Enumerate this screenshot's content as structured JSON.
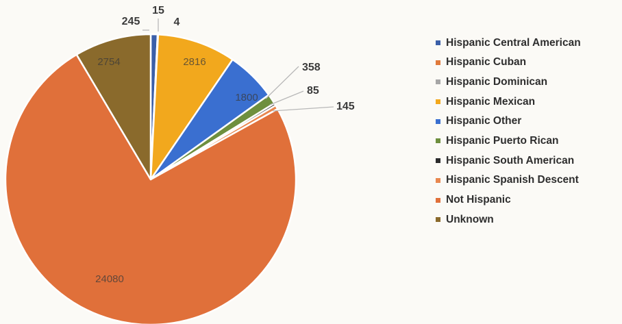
{
  "chart_data": {
    "type": "pie",
    "title": "",
    "slices": [
      {
        "label": "Hispanic Central American",
        "value": 245,
        "color": "#3b5fa8",
        "data_label": "245"
      },
      {
        "label": "Hispanic Cuban",
        "value": 15,
        "color": "#e07a3c",
        "data_label": "15"
      },
      {
        "label": "Hispanic Dominican",
        "value": 4,
        "color": "#a6a6a6",
        "data_label": "4"
      },
      {
        "label": "Hispanic Mexican",
        "value": 2816,
        "color": "#f2a81d",
        "data_label": "2816"
      },
      {
        "label": "Hispanic Other",
        "value": 1800,
        "color": "#3a6fd0",
        "data_label": "1800"
      },
      {
        "label": "Hispanic Puerto Rican",
        "value": 358,
        "color": "#6e8f3e",
        "data_label": "358"
      },
      {
        "label": "Hispanic South American",
        "value": 85,
        "color": "#2b2b2b",
        "data_label": "85"
      },
      {
        "label": "Hispanic Spanish Descent",
        "value": 145,
        "color": "#e8874f",
        "data_label": "145"
      },
      {
        "label": "Not Hispanic",
        "value": 24080,
        "color": "#e0703a",
        "data_label": "24080"
      },
      {
        "label": "Unknown",
        "value": 2754,
        "color": "#8a6a2c",
        "data_label": "2754"
      }
    ],
    "legend_position": "right"
  }
}
